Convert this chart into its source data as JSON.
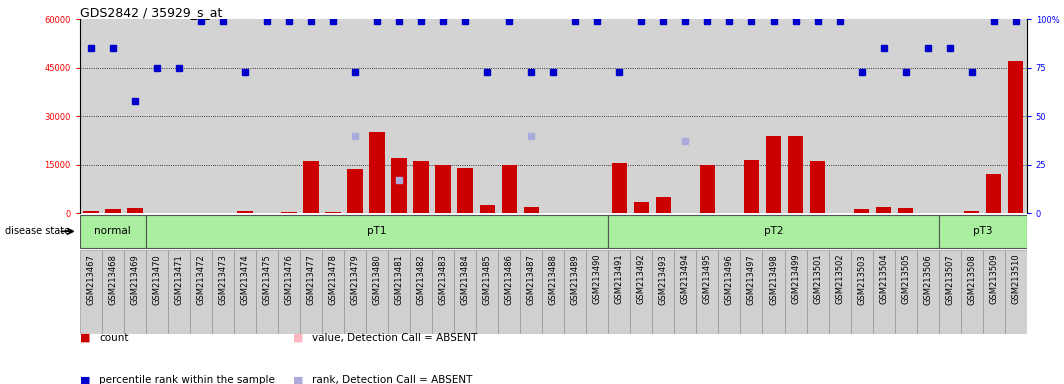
{
  "title": "GDS2842 / 35929_s_at",
  "samples": [
    "GSM213467",
    "GSM213468",
    "GSM213469",
    "GSM213470",
    "GSM213471",
    "GSM213472",
    "GSM213473",
    "GSM213474",
    "GSM213475",
    "GSM213476",
    "GSM213477",
    "GSM213478",
    "GSM213479",
    "GSM213480",
    "GSM213481",
    "GSM213482",
    "GSM213483",
    "GSM213484",
    "GSM213485",
    "GSM213486",
    "GSM213487",
    "GSM213488",
    "GSM213489",
    "GSM213490",
    "GSM213491",
    "GSM213492",
    "GSM213493",
    "GSM213494",
    "GSM213495",
    "GSM213496",
    "GSM213497",
    "GSM213498",
    "GSM213499",
    "GSM213501",
    "GSM213502",
    "GSM213503",
    "GSM213504",
    "GSM213505",
    "GSM213506",
    "GSM213507",
    "GSM213508",
    "GSM213509",
    "GSM213510"
  ],
  "counts": [
    700,
    1200,
    1500,
    0,
    0,
    0,
    0,
    700,
    0,
    300,
    16000,
    200,
    13500,
    25000,
    17000,
    16000,
    15000,
    14000,
    2500,
    15000,
    2000,
    0,
    0,
    0,
    15500,
    3500,
    5000,
    0,
    15000,
    0,
    16500,
    24000,
    24000,
    16000,
    0,
    1200,
    2000,
    1500,
    0,
    0,
    700,
    12000,
    47000
  ],
  "percentile_ranks_pct": [
    85,
    85,
    58,
    75,
    75,
    99,
    99,
    73,
    99,
    99,
    99,
    99,
    73,
    99,
    99,
    99,
    99,
    99,
    73,
    99,
    73,
    73,
    99,
    99,
    73,
    99,
    99,
    99,
    99,
    99,
    99,
    99,
    99,
    99,
    99,
    73,
    85,
    73,
    85,
    85,
    73,
    99,
    99
  ],
  "absent_ranks_pct": [
    null,
    null,
    null,
    null,
    null,
    null,
    null,
    null,
    null,
    null,
    null,
    null,
    40,
    null,
    17,
    null,
    null,
    null,
    null,
    null,
    40,
    null,
    null,
    null,
    null,
    null,
    null,
    37,
    null,
    null,
    null,
    null,
    null,
    null,
    null,
    null,
    null,
    null,
    null,
    null,
    null,
    null,
    null
  ],
  "disease_groups": [
    {
      "label": "normal",
      "start": 0,
      "end": 2
    },
    {
      "label": "pT1",
      "start": 3,
      "end": 23
    },
    {
      "label": "pT2",
      "start": 24,
      "end": 38
    },
    {
      "label": "pT3",
      "start": 39,
      "end": 42
    }
  ],
  "ylim_left": [
    0,
    60000
  ],
  "ylim_right": [
    0,
    100
  ],
  "yticks_left": [
    0,
    15000,
    30000,
    45000,
    60000
  ],
  "yticks_right": [
    0,
    25,
    50,
    75,
    100
  ],
  "bar_color": "#CC0000",
  "dot_color": "#0000CC",
  "absent_count_color": "#FFB6C1",
  "absent_rank_color": "#AAAADD",
  "bg_color": "#D3D3D3",
  "title_fontsize": 9,
  "tick_fontsize": 6,
  "label_fontsize": 7
}
